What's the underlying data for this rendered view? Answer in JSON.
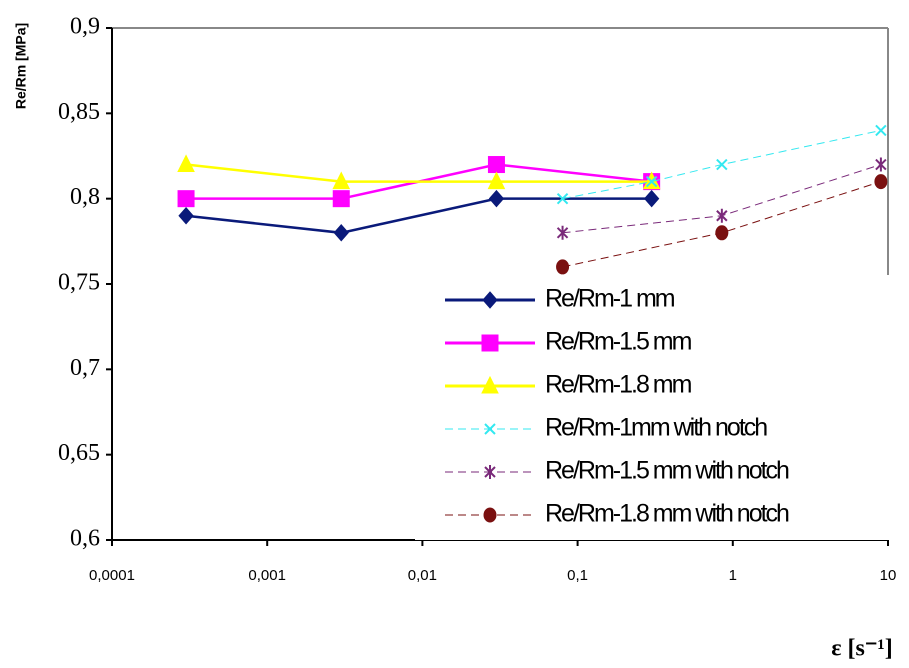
{
  "chart_data": {
    "type": "line",
    "ylabel": "Re/Rm [MPa]",
    "xlabel": "ε [s⁻¹]",
    "xscale": "log",
    "xlim": [
      0.0001,
      10
    ],
    "xticks": [
      {
        "value": 0.0001,
        "label": "0,0001"
      },
      {
        "value": 0.001,
        "label": "0,001"
      },
      {
        "value": 0.01,
        "label": "0,01"
      },
      {
        "value": 0.1,
        "label": "0,1"
      },
      1,
      10
    ],
    "ylim": [
      0.6,
      0.9
    ],
    "yticks": [
      {
        "value": 0.6,
        "label": "0,6"
      },
      {
        "value": 0.65,
        "label": "0,65"
      },
      {
        "value": 0.7,
        "label": "0,7"
      },
      {
        "value": 0.75,
        "label": "0,75"
      },
      {
        "value": 0.8,
        "label": "0,8"
      },
      {
        "value": 0.85,
        "label": "0,85"
      },
      {
        "value": 0.9,
        "label": "0,9"
      }
    ],
    "legend": "lower right",
    "series": [
      {
        "name": "Re/Rm-1 mm",
        "color": "#0a1a7a",
        "marker": "diamond",
        "dashed": false,
        "x": [
          0.0003,
          0.003,
          0.03,
          0.3
        ],
        "values": [
          0.79,
          0.78,
          0.8,
          0.8
        ]
      },
      {
        "name": "Re/Rm-1.5 mm",
        "color": "#ff00ff",
        "marker": "square",
        "dashed": false,
        "x": [
          0.0003,
          0.003,
          0.03,
          0.3
        ],
        "values": [
          0.8,
          0.8,
          0.82,
          0.81
        ]
      },
      {
        "name": "Re/Rm-1.8 mm",
        "color": "#ffff00",
        "marker": "triangle",
        "dashed": false,
        "x": [
          0.0003,
          0.003,
          0.03,
          0.3
        ],
        "values": [
          0.82,
          0.81,
          0.81,
          0.81
        ]
      },
      {
        "name": "Re/Rm-1mm with notch",
        "color": "#33e8f0",
        "marker": "x",
        "dashed": true,
        "x": [
          0.08,
          0.3,
          0.85,
          9
        ],
        "values": [
          0.8,
          0.81,
          0.82,
          0.84
        ]
      },
      {
        "name": "Re/Rm-1.5 mm with notch",
        "color": "#7a2a7a",
        "marker": "asterisk",
        "dashed": true,
        "x": [
          0.08,
          0.85,
          9
        ],
        "values": [
          0.78,
          0.79,
          0.82
        ]
      },
      {
        "name": "Re/Rm-1.8 mm with notch",
        "color": "#7a1010",
        "marker": "circle",
        "dashed": true,
        "x": [
          0.08,
          0.85,
          9
        ],
        "values": [
          0.76,
          0.78,
          0.81
        ]
      }
    ]
  }
}
